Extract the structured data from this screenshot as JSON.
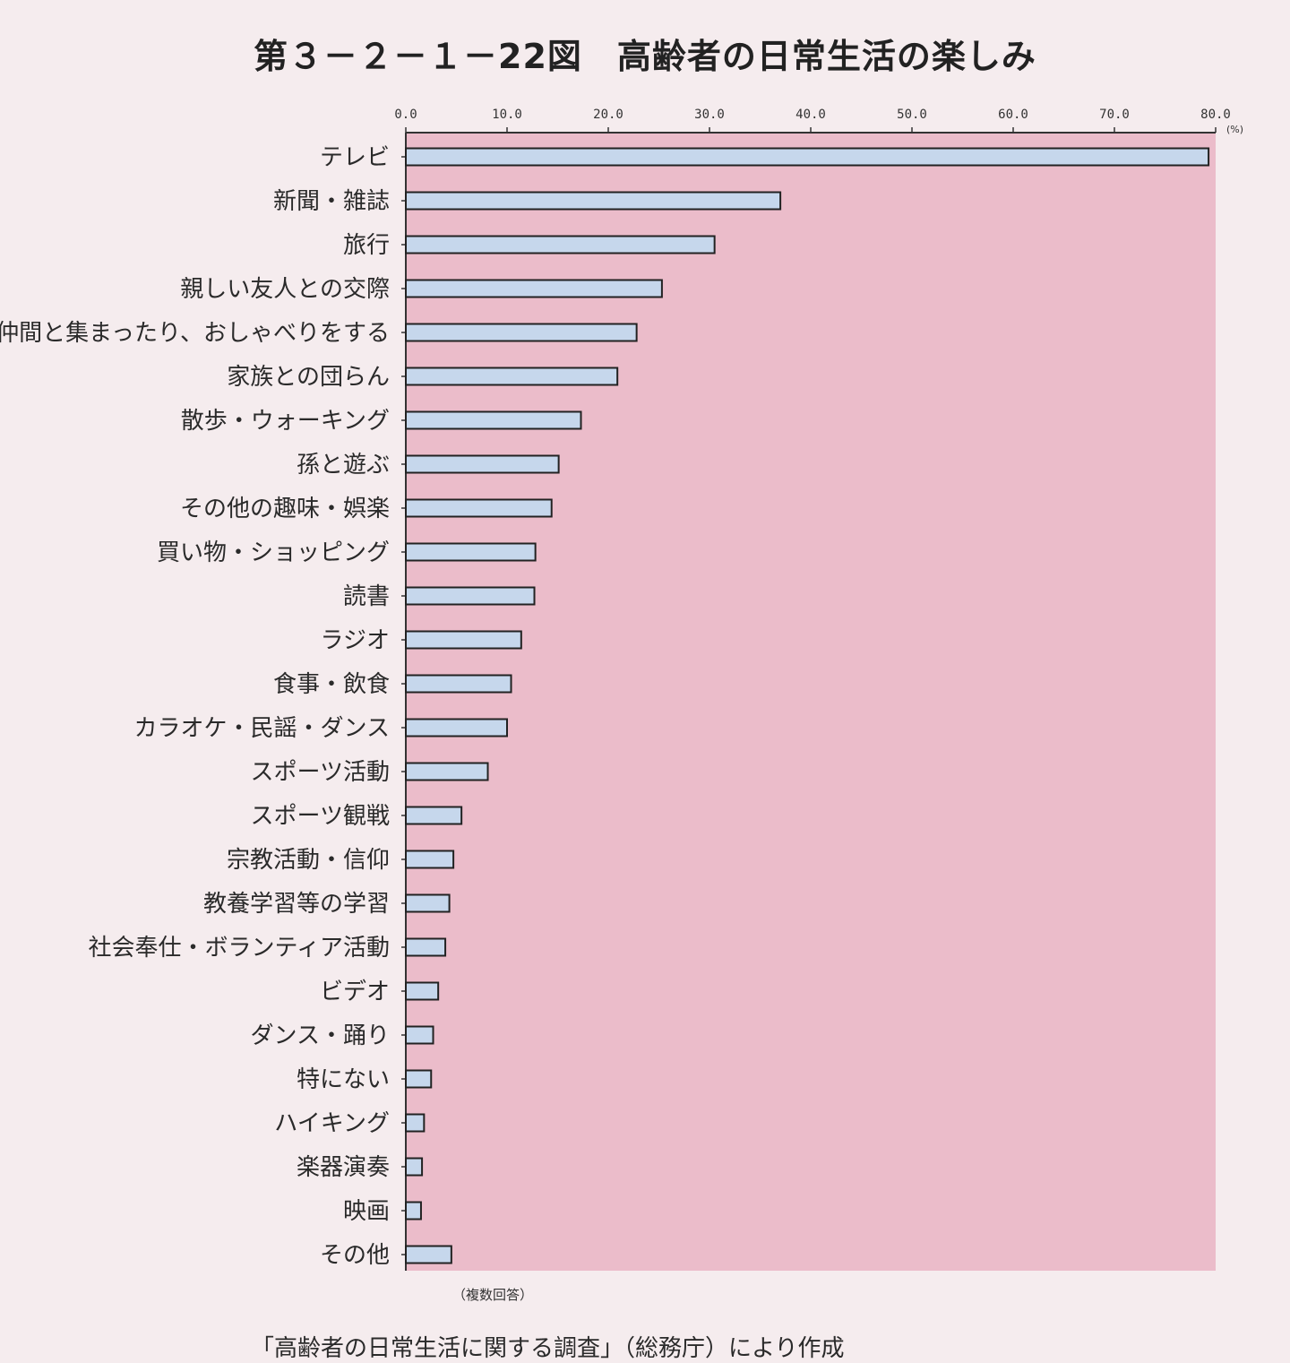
{
  "title": "第３－２－１－22図　高齢者の日常生活の楽しみ",
  "note": "（複数回答）",
  "source": "「高齢者の日常生活に関する調査」（総務庁）により作成",
  "colors": {
    "plot_bg": "#ebbcca",
    "bar_fill": "#c6d7ec",
    "bar_stroke": "#222222",
    "axis": "#333333"
  },
  "chart_data": {
    "type": "bar",
    "orientation": "horizontal",
    "unit": "(%)",
    "xlim": [
      0,
      80
    ],
    "ticks": [
      "0.0",
      "10.0",
      "20.0",
      "30.0",
      "40.0",
      "50.0",
      "60.0",
      "70.0",
      "80.0"
    ],
    "grid": false,
    "categories": [
      "テレビ",
      "新聞・雑誌",
      "旅行",
      "親しい友人との交際",
      "仲間と集まったり、おしゃべりをする",
      "家族との団らん",
      "散歩・ウォーキング",
      "孫と遊ぶ",
      "その他の趣味・娯楽",
      "買い物・ショッピング",
      "読書",
      "ラジオ",
      "食事・飲食",
      "カラオケ・民謡・ダンス",
      "スポーツ活動",
      "スポーツ観戦",
      "宗教活動・信仰",
      "教養学習等の学習",
      "社会奉仕・ボランティア活動",
      "ビデオ",
      "ダンス・踊り",
      "特にない",
      "ハイキング",
      "楽器演奏",
      "映画",
      "その他"
    ],
    "values": [
      79.3,
      37.0,
      30.5,
      25.3,
      22.8,
      20.9,
      17.3,
      15.1,
      14.4,
      12.8,
      12.7,
      11.4,
      10.4,
      10.0,
      8.1,
      5.5,
      4.7,
      4.3,
      3.9,
      3.2,
      2.7,
      2.5,
      1.8,
      1.6,
      1.5,
      4.5
    ]
  }
}
